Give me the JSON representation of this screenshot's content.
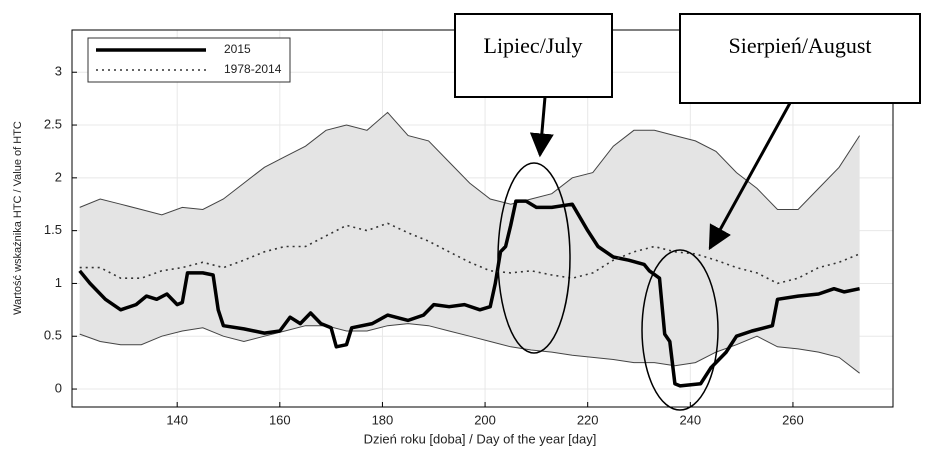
{
  "chart_data": {
    "type": "line",
    "x_label": "Dzień roku [doba] / Day of the year [day]",
    "y_label": "Wartość wskaźnika HTC / Value of HTC",
    "xlim": [
      119.5,
      279.5
    ],
    "xticks": [
      140,
      160,
      180,
      200,
      220,
      240,
      260
    ],
    "ylim": [
      -0.17,
      3.4
    ],
    "yticks": [
      0,
      0.5,
      1,
      1.5,
      2,
      2.5,
      3
    ],
    "grid": true,
    "legend": "upper left",
    "x": [
      121,
      125,
      129,
      133,
      137,
      141,
      145,
      149,
      153,
      157,
      161,
      165,
      169,
      173,
      177,
      181,
      185,
      189,
      193,
      197,
      201,
      205,
      209,
      213,
      217,
      221,
      225,
      229,
      233,
      237,
      241,
      245,
      249,
      253,
      257,
      261,
      265,
      269,
      273
    ],
    "band": {
      "color": "#e4e4e4",
      "upper": [
        1.72,
        1.8,
        1.75,
        1.7,
        1.65,
        1.72,
        1.7,
        1.8,
        1.95,
        2.1,
        2.2,
        2.3,
        2.45,
        2.5,
        2.45,
        2.62,
        2.4,
        2.35,
        2.15,
        1.95,
        1.8,
        1.75,
        1.8,
        1.85,
        2.0,
        2.05,
        2.3,
        2.45,
        2.45,
        2.4,
        2.35,
        2.25,
        2.05,
        1.9,
        1.7,
        1.7,
        1.9,
        2.1,
        2.4
      ],
      "lower": [
        0.52,
        0.45,
        0.42,
        0.42,
        0.5,
        0.55,
        0.58,
        0.5,
        0.45,
        0.5,
        0.55,
        0.6,
        0.6,
        0.55,
        0.55,
        0.6,
        0.62,
        0.6,
        0.55,
        0.5,
        0.45,
        0.4,
        0.37,
        0.35,
        0.32,
        0.3,
        0.28,
        0.25,
        0.25,
        0.22,
        0.25,
        0.35,
        0.42,
        0.5,
        0.4,
        0.38,
        0.35,
        0.3,
        0.15
      ]
    },
    "series": [
      {
        "name": "2015",
        "color": "#000000",
        "style": "solid",
        "x": [
          121,
          123,
          126,
          129,
          132,
          134,
          136,
          138,
          140,
          141,
          142,
          145,
          147,
          148,
          149,
          153,
          157,
          160,
          162,
          164,
          166,
          168,
          170,
          171,
          173,
          174,
          178,
          181,
          185,
          188,
          190,
          193,
          196,
          199,
          201,
          202,
          203,
          204,
          205,
          206,
          208,
          210,
          213,
          217,
          220,
          222,
          225,
          228,
          231,
          232,
          234,
          235,
          236,
          237,
          238,
          242,
          244,
          247,
          249,
          252,
          256,
          257,
          261,
          265,
          268,
          270,
          273
        ],
        "values": [
          1.12,
          1.0,
          0.85,
          0.75,
          0.8,
          0.88,
          0.85,
          0.9,
          0.8,
          0.82,
          1.1,
          1.1,
          1.08,
          0.75,
          0.6,
          0.57,
          0.53,
          0.55,
          0.68,
          0.62,
          0.72,
          0.62,
          0.58,
          0.4,
          0.42,
          0.58,
          0.62,
          0.7,
          0.65,
          0.7,
          0.8,
          0.78,
          0.8,
          0.75,
          0.78,
          1.0,
          1.3,
          1.35,
          1.55,
          1.78,
          1.78,
          1.72,
          1.72,
          1.75,
          1.5,
          1.35,
          1.25,
          1.22,
          1.18,
          1.12,
          1.05,
          0.52,
          0.45,
          0.05,
          0.03,
          0.05,
          0.2,
          0.35,
          0.5,
          0.55,
          0.6,
          0.85,
          0.88,
          0.9,
          0.95,
          0.92,
          0.95
        ]
      },
      {
        "name": "1978-2014",
        "color": "#333333",
        "style": "dotted",
        "values": [
          1.15,
          1.15,
          1.05,
          1.05,
          1.12,
          1.15,
          1.2,
          1.15,
          1.22,
          1.3,
          1.35,
          1.35,
          1.45,
          1.55,
          1.5,
          1.57,
          1.48,
          1.4,
          1.3,
          1.2,
          1.12,
          1.1,
          1.12,
          1.08,
          1.05,
          1.1,
          1.22,
          1.3,
          1.35,
          1.3,
          1.28,
          1.22,
          1.15,
          1.1,
          1.0,
          1.05,
          1.15,
          1.2,
          1.28
        ]
      }
    ],
    "annotations": [
      "Lipiec/July",
      "Sierpień/August"
    ]
  }
}
